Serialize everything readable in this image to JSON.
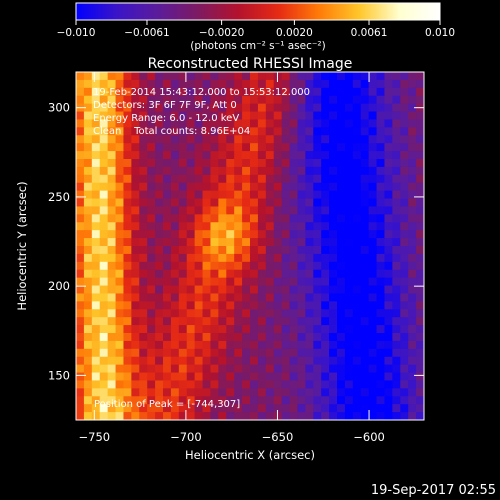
{
  "chart_data": {
    "type": "heatmap",
    "title": "Reconstructed RHESSI Image",
    "xlabel": "Heliocentric X (arcsec)",
    "ylabel": "Heliocentric Y (arcsec)",
    "xlim": [
      -760,
      -570
    ],
    "ylim": [
      125,
      320
    ],
    "x_ticks": [
      -750,
      -700,
      -650,
      -600
    ],
    "y_ticks": [
      150,
      200,
      250,
      300
    ],
    "x_tick_labels": [
      "−750",
      "−700",
      "−650",
      "−600"
    ],
    "y_tick_labels": [
      "150",
      "200",
      "250",
      "300"
    ],
    "colorbar": {
      "range": [
        -0.01,
        0.01
      ],
      "ticks": [
        -0.01,
        -0.0061,
        -0.002,
        0.002,
        0.0061,
        0.01
      ],
      "tick_labels": [
        "−0.010",
        "−0.0061",
        "−0.0020",
        "0.0020",
        "0.0061",
        "0.010"
      ],
      "unit_label": "(photons cm⁻² s⁻¹ asec⁻²)",
      "colors": [
        "#0000ff",
        "#3a14c8",
        "#5a1c9c",
        "#7d1a63",
        "#b3122d",
        "#e62a14",
        "#ff7a08",
        "#ffc62a",
        "#ffffd0",
        "#ffffff"
      ]
    },
    "annotations": {
      "time_range": "19-Feb-2014 15:43:12.000 to 15:53:12.000",
      "detectors": "Detectors: 3F 6F 7F 9F, Att 0",
      "energy_range": "Energy Range: 6.0 - 12.0 keV",
      "method": "Clean    Total counts: 8.96E+04",
      "peak": "Position of Peak = [-744,307]"
    },
    "features": [
      {
        "name": "west limb band",
        "x_center_at_bottom": -745,
        "x_center_at_top": -748,
        "value": 0.0095,
        "width": 18
      },
      {
        "name": "main arc",
        "x_center_at_bottom": -712,
        "x_center_at_top": -650,
        "value": 0.0045,
        "width": 22
      },
      {
        "name": "hot knot",
        "x": -678,
        "y": 228,
        "value": 0.004,
        "width": 18
      },
      {
        "name": "east dark band",
        "x_center_at_bottom": -600,
        "x_center_at_top": -618,
        "value": -0.0075,
        "width": 28
      }
    ]
  },
  "footer": {
    "timestamp": "19-Sep-2017 02:55"
  }
}
